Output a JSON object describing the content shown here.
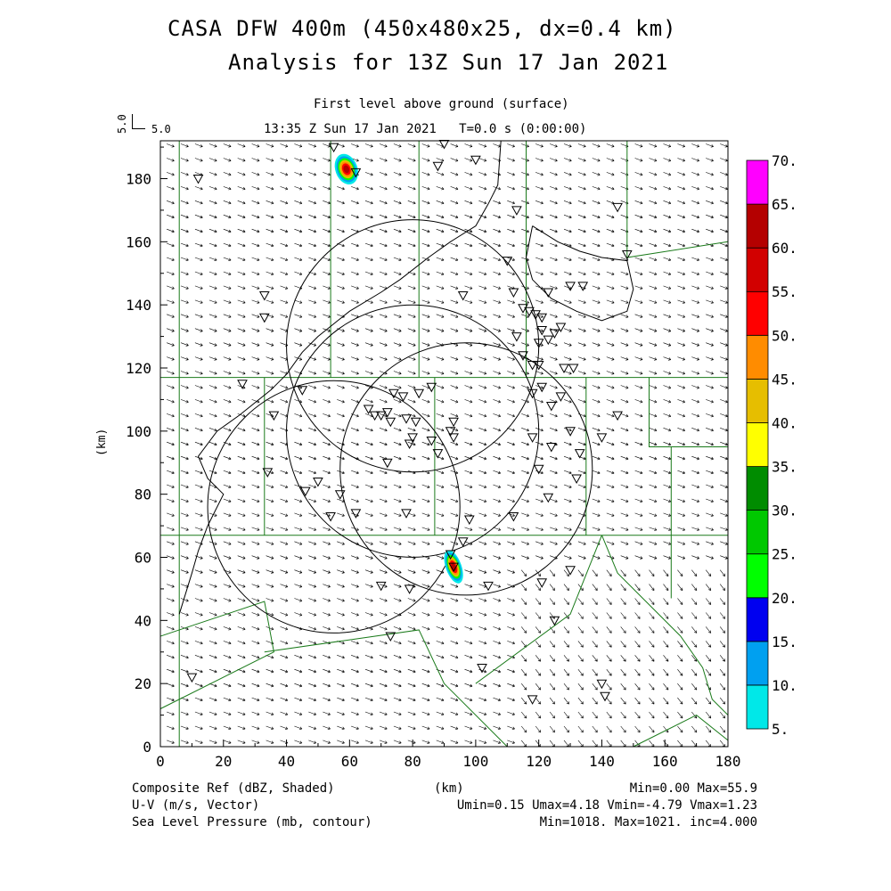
{
  "header": {
    "title_line1": "CASA DFW 400m (450x480x25, dx=0.4 km)",
    "title_line2": "Analysis for 13Z Sun 17 Jan 2021",
    "level": "First level above ground (surface)",
    "time": "13:35 Z Sun 17 Jan 2021   T=0.0 s (0:00:00)",
    "ref_vector_label": "5.0",
    "ref_vector_axis": "5.0"
  },
  "axes": {
    "x_label": "(km)",
    "y_label": "(km)",
    "x_range": [
      0,
      180
    ],
    "y_range": [
      0,
      192
    ],
    "x_ticks": [
      "0",
      "20",
      "40",
      "60",
      "80",
      "100",
      "120",
      "140",
      "160",
      "180"
    ],
    "y_ticks": [
      "0",
      "20",
      "40",
      "60",
      "80",
      "100",
      "120",
      "140",
      "160",
      "180"
    ]
  },
  "colorbar": {
    "labels": [
      "5.",
      "10.",
      "15.",
      "20.",
      "25.",
      "30.",
      "35.",
      "40.",
      "45.",
      "50.",
      "55.",
      "60.",
      "65.",
      "70."
    ],
    "colors": [
      "#00e8e8",
      "#00a0f0",
      "#0000f0",
      "#00ff00",
      "#00c800",
      "#008c00",
      "#ffff00",
      "#e6be00",
      "#ff8c00",
      "#ff0000",
      "#d20000",
      "#b40000",
      "#ff00ff"
    ]
  },
  "footer": {
    "left1": "Composite Ref (dBZ, Shaded)",
    "left2": "U-V (m/s, Vector)",
    "left3": "Sea Level Pressure (mb, contour)",
    "center": "(km)",
    "right1": "Min=0.00 Max=55.9",
    "right2": "Umin=0.15 Umax=4.18 Vmin=-4.79 Vmax=1.23",
    "right3": "Min=1018. Max=1021. inc=4.000"
  },
  "map_data": {
    "radar_ranges_km": [
      {
        "x": 80,
        "y": 127,
        "r": 40
      },
      {
        "x": 80,
        "y": 100,
        "r": 40
      },
      {
        "x": 97,
        "y": 88,
        "r": 40
      },
      {
        "x": 55,
        "y": 76,
        "r": 40
      }
    ],
    "echoes": [
      {
        "x": 59,
        "y": 183,
        "w": 7,
        "h": 10,
        "max_dbz": 55
      },
      {
        "x": 93,
        "y": 57,
        "w": 5,
        "h": 11,
        "max_dbz": 55
      }
    ],
    "stations": [
      [
        55,
        190
      ],
      [
        62,
        182
      ],
      [
        88,
        184
      ],
      [
        90,
        191
      ],
      [
        100,
        186
      ],
      [
        12,
        180
      ],
      [
        113,
        170
      ],
      [
        145,
        171
      ],
      [
        148,
        156
      ],
      [
        33,
        143
      ],
      [
        33,
        136
      ],
      [
        96,
        143
      ],
      [
        110,
        154
      ],
      [
        112,
        144
      ],
      [
        115,
        139
      ],
      [
        117,
        138
      ],
      [
        119,
        137
      ],
      [
        121,
        136
      ],
      [
        121,
        132
      ],
      [
        123,
        129
      ],
      [
        125,
        131
      ],
      [
        127,
        133
      ],
      [
        130,
        146
      ],
      [
        134,
        146
      ],
      [
        123,
        144
      ],
      [
        113,
        130
      ],
      [
        115,
        124
      ],
      [
        118,
        121
      ],
      [
        120,
        121
      ],
      [
        120,
        128
      ],
      [
        128,
        120
      ],
      [
        131,
        120
      ],
      [
        118,
        112
      ],
      [
        121,
        114
      ],
      [
        124,
        108
      ],
      [
        127,
        111
      ],
      [
        145,
        105
      ],
      [
        140,
        98
      ],
      [
        130,
        100
      ],
      [
        124,
        95
      ],
      [
        118,
        98
      ],
      [
        74,
        112
      ],
      [
        77,
        111
      ],
      [
        82,
        112
      ],
      [
        86,
        114
      ],
      [
        81,
        103
      ],
      [
        78,
        104
      ],
      [
        72,
        106
      ],
      [
        68,
        105
      ],
      [
        66,
        107
      ],
      [
        70,
        105
      ],
      [
        73,
        103
      ],
      [
        86,
        97
      ],
      [
        92,
        100
      ],
      [
        93,
        103
      ],
      [
        93,
        98
      ],
      [
        88,
        93
      ],
      [
        80,
        98
      ],
      [
        79,
        96
      ],
      [
        72,
        90
      ],
      [
        26,
        115
      ],
      [
        36,
        105
      ],
      [
        45,
        113
      ],
      [
        34,
        87
      ],
      [
        50,
        84
      ],
      [
        57,
        80
      ],
      [
        46,
        81
      ],
      [
        54,
        73
      ],
      [
        62,
        74
      ],
      [
        78,
        74
      ],
      [
        98,
        72
      ],
      [
        112,
        73
      ],
      [
        120,
        88
      ],
      [
        123,
        79
      ],
      [
        133,
        93
      ],
      [
        132,
        85
      ],
      [
        92,
        61
      ],
      [
        96,
        65
      ],
      [
        93,
        57
      ],
      [
        104,
        51
      ],
      [
        121,
        52
      ],
      [
        130,
        56
      ],
      [
        125,
        40
      ],
      [
        70,
        51
      ],
      [
        79,
        50
      ],
      [
        73,
        35
      ],
      [
        102,
        25
      ],
      [
        118,
        15
      ],
      [
        140,
        20
      ],
      [
        141,
        16
      ],
      [
        10,
        22
      ]
    ],
    "county_lines": [
      [
        [
          6,
          0
        ],
        [
          6,
          192
        ]
      ],
      [
        [
          0,
          117
        ],
        [
          180,
          117
        ]
      ],
      [
        [
          0,
          67
        ],
        [
          180,
          67
        ]
      ],
      [
        [
          33,
          117
        ],
        [
          33,
          67
        ]
      ],
      [
        [
          54,
          192
        ],
        [
          54,
          117
        ]
      ],
      [
        [
          82,
          192
        ],
        [
          82,
          117
        ]
      ],
      [
        [
          116,
          192
        ],
        [
          116,
          117
        ]
      ],
      [
        [
          87,
          117
        ],
        [
          87,
          67
        ]
      ],
      [
        [
          135,
          117
        ],
        [
          135,
          67
        ]
      ],
      [
        [
          148,
          192
        ],
        [
          148,
          155
        ],
        [
          180,
          160
        ]
      ],
      [
        [
          155,
          117
        ],
        [
          155,
          95
        ],
        [
          180,
          95
        ]
      ],
      [
        [
          162,
          95
        ],
        [
          162,
          47
        ]
      ]
    ],
    "pressure_contour_note": "1020 mb"
  }
}
